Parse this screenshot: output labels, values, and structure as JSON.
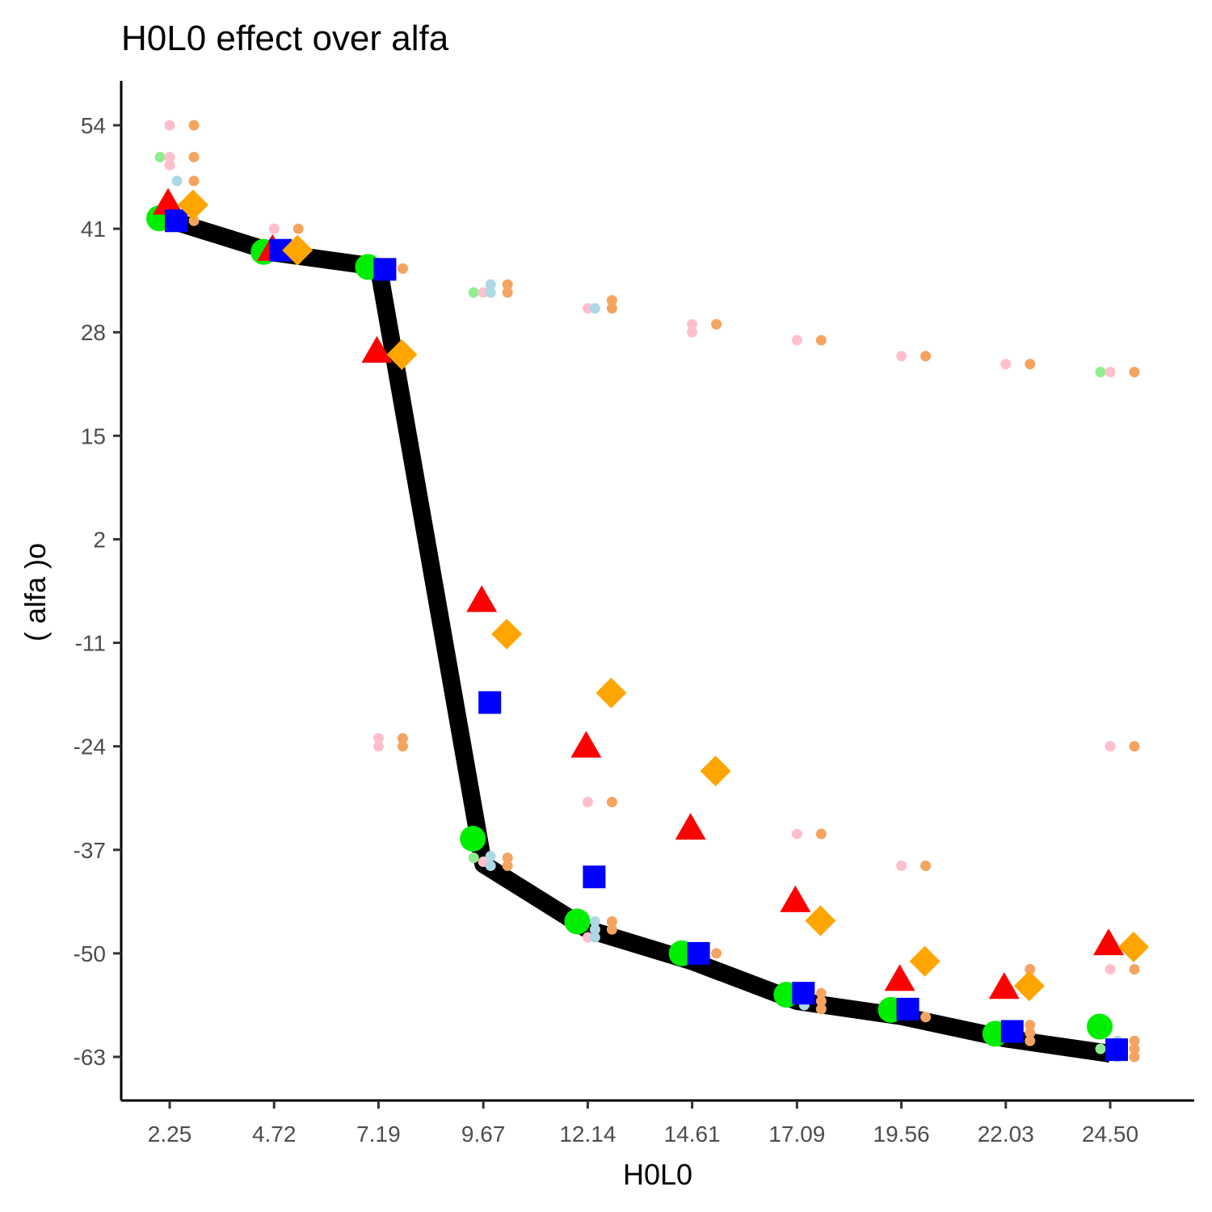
{
  "chart_data": {
    "type": "scatter",
    "title": "H0L0 effect over  alfa",
    "xlabel": "H0L0",
    "ylabel": "( alfa )o",
    "x_ticks": [
      "2.25",
      "4.72",
      "7.19",
      "9.67",
      "12.14",
      "14.61",
      "17.09",
      "19.56",
      "22.03",
      "24.50"
    ],
    "y_ticks": [
      54,
      41,
      28,
      15,
      2,
      -11,
      -24,
      -37,
      -50,
      -63
    ],
    "ylim": [
      -68.5,
      59.5
    ],
    "grid": false,
    "legend": "none",
    "line": {
      "color": "#000000",
      "points": [
        [
          2.25,
          42.1
        ],
        [
          4.72,
          38.0
        ],
        [
          7.19,
          36.2
        ],
        [
          9.67,
          -38.8
        ],
        [
          12.14,
          -47.0
        ],
        [
          14.61,
          -51.0
        ],
        [
          17.09,
          -56.0
        ],
        [
          19.56,
          -57.9
        ],
        [
          22.03,
          -60.7
        ],
        [
          24.5,
          -62.6
        ]
      ]
    },
    "series": [
      {
        "shape": "circle",
        "color": "#00ee00",
        "offset_index": 0,
        "values": [
          42.3,
          38.1,
          36.2,
          -35.6,
          -46.0,
          -50.0,
          -55.2,
          -57.1,
          -60.1,
          -59.2
        ]
      },
      {
        "shape": "triangle",
        "color": "#ff0000",
        "offset_index": 1,
        "values": [
          44.2,
          38.4,
          25.6,
          -5.7,
          -24.0,
          -34.3,
          -43.4,
          -53.3,
          -54.3,
          -48.8
        ]
      },
      {
        "shape": "square",
        "color": "#0000ff",
        "offset_index": 2,
        "values": [
          42.0,
          38.3,
          35.9,
          -18.5,
          -40.4,
          -50.0,
          -55.0,
          -57.0,
          -59.8,
          -62.1
        ]
      },
      {
        "shape": "diamond",
        "color": "#ffa500",
        "offset_index": 3,
        "values": [
          44.0,
          38.3,
          25.2,
          -9.9,
          -17.3,
          -27.1,
          -45.9,
          -51.0,
          -54.1,
          -49.2
        ]
      }
    ],
    "small_points": [
      {
        "color": "#90ee90",
        "offset_index": 0,
        "points": [
          [
            2.25,
            50.0
          ],
          [
            9.67,
            33.0
          ],
          [
            9.67,
            -38.0
          ],
          [
            12.14,
            -46.0
          ],
          [
            24.5,
            23.0
          ],
          [
            24.5,
            -62.0
          ]
        ]
      },
      {
        "color": "#ffc0cb",
        "offset_index": 1,
        "points": [
          [
            2.25,
            54.0
          ],
          [
            2.25,
            50.0
          ],
          [
            2.25,
            49.0
          ],
          [
            4.72,
            41.0
          ],
          [
            7.19,
            -23.0
          ],
          [
            7.19,
            -24.0
          ],
          [
            9.67,
            33.0
          ],
          [
            9.67,
            -38.5
          ],
          [
            12.14,
            31.0
          ],
          [
            12.14,
            -31.0
          ],
          [
            12.14,
            -48.0
          ],
          [
            14.61,
            29.0
          ],
          [
            14.61,
            28.0
          ],
          [
            17.09,
            27.0
          ],
          [
            17.09,
            -35.0
          ],
          [
            19.56,
            25.0
          ],
          [
            19.56,
            -39.0
          ],
          [
            22.03,
            24.0
          ],
          [
            24.5,
            23.0
          ],
          [
            24.5,
            -24.0
          ],
          [
            24.5,
            -52.0
          ]
        ]
      },
      {
        "color": "#add8e6",
        "offset_index": 2,
        "points": [
          [
            2.25,
            47.0
          ],
          [
            9.67,
            34.0
          ],
          [
            9.67,
            33.0
          ],
          [
            9.67,
            -37.8
          ],
          [
            9.67,
            -39.0
          ],
          [
            12.14,
            31.0
          ],
          [
            12.14,
            -46.0
          ],
          [
            12.14,
            -47.0
          ],
          [
            12.14,
            -48.0
          ],
          [
            17.09,
            -56.5
          ],
          [
            24.5,
            -61.0
          ],
          [
            24.5,
            -63.0
          ]
        ]
      },
      {
        "color": "#f4a460",
        "offset_index": 3,
        "points": [
          [
            2.25,
            54.0
          ],
          [
            2.25,
            50.0
          ],
          [
            2.25,
            47.0
          ],
          [
            2.25,
            42.0
          ],
          [
            4.72,
            41.0
          ],
          [
            7.19,
            36.0
          ],
          [
            7.19,
            -23.0
          ],
          [
            7.19,
            -24.0
          ],
          [
            9.67,
            34.0
          ],
          [
            9.67,
            33.0
          ],
          [
            9.67,
            -38.0
          ],
          [
            9.67,
            -39.0
          ],
          [
            12.14,
            32.0
          ],
          [
            12.14,
            31.0
          ],
          [
            12.14,
            -31.0
          ],
          [
            12.14,
            -46.0
          ],
          [
            12.14,
            -47.0
          ],
          [
            14.61,
            29.0
          ],
          [
            14.61,
            -50.0
          ],
          [
            17.09,
            27.0
          ],
          [
            17.09,
            -35.0
          ],
          [
            17.09,
            -55.0
          ],
          [
            17.09,
            -56.0
          ],
          [
            17.09,
            -57.0
          ],
          [
            19.56,
            25.0
          ],
          [
            19.56,
            -39.0
          ],
          [
            19.56,
            -58.0
          ],
          [
            22.03,
            24.0
          ],
          [
            22.03,
            -52.0
          ],
          [
            22.03,
            -59.0
          ],
          [
            22.03,
            -60.0
          ],
          [
            22.03,
            -61.0
          ],
          [
            24.5,
            23.0
          ],
          [
            24.5,
            -24.0
          ],
          [
            24.5,
            -52.0
          ],
          [
            24.5,
            -61.0
          ],
          [
            24.5,
            -62.0
          ],
          [
            24.5,
            -63.0
          ]
        ]
      }
    ]
  }
}
